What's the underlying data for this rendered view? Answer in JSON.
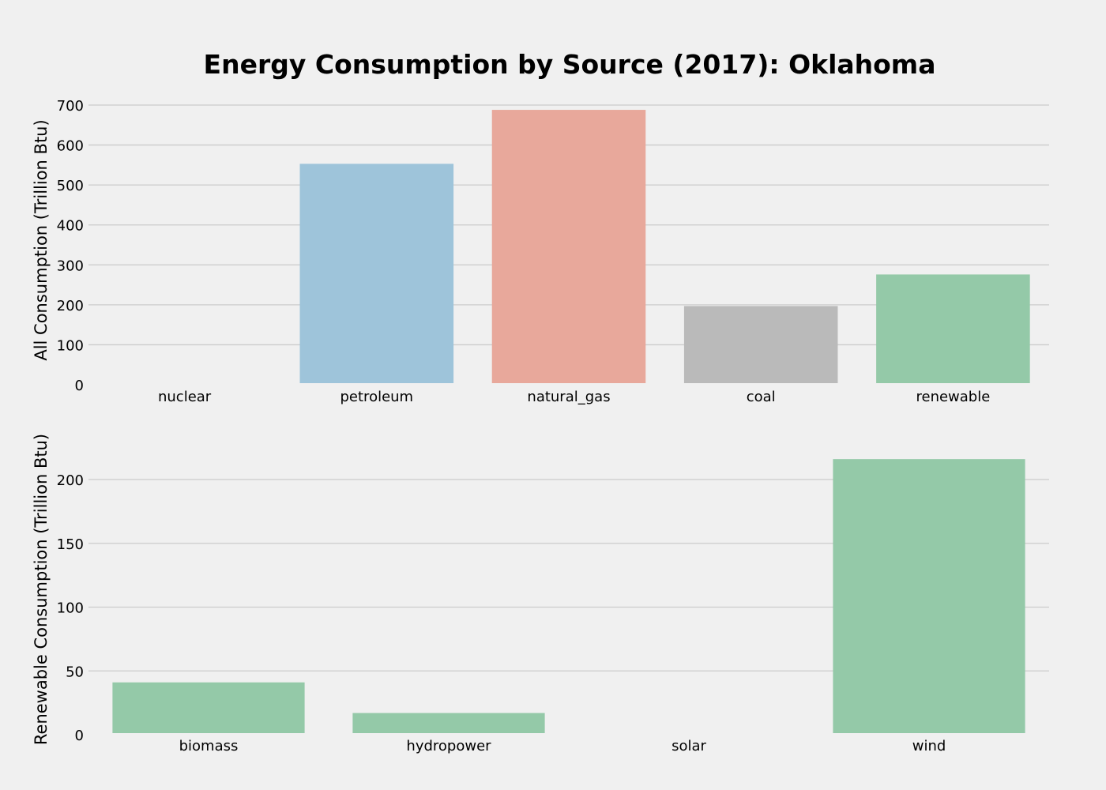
{
  "chart_data": [
    {
      "type": "bar",
      "title": "Energy Consumption by Source (2017): Oklahoma",
      "ylabel": "All Consumption (Trillion Btu)",
      "categories": [
        "nuclear",
        "petroleum",
        "natural_gas",
        "coal",
        "renewable"
      ],
      "values": [
        0,
        553,
        688,
        197,
        276
      ],
      "colors": [
        "#30a2da",
        "#30a2da",
        "#e5ae38",
        "#8b8b8b",
        "#6d904f"
      ],
      "bar_colors": [
        "#9ec4da",
        "#9ec4da",
        "#e8a89b",
        "#bababa",
        "#94c9a8"
      ],
      "yticks": [
        0,
        100,
        200,
        300,
        400,
        500,
        600,
        700
      ],
      "ylim": [
        0,
        700
      ],
      "grid": true
    },
    {
      "type": "bar",
      "title": "",
      "ylabel": "Renewable Consumption (Trillion Btu)",
      "categories": [
        "biomass",
        "hydropower",
        "solar",
        "wind"
      ],
      "values": [
        41,
        17,
        0,
        216
      ],
      "bar_colors": [
        "#94c9a8",
        "#94c9a8",
        "#94c9a8",
        "#94c9a8"
      ],
      "yticks": [
        0,
        50,
        100,
        150,
        200
      ],
      "ylim": [
        0,
        200
      ],
      "grid": true
    }
  ]
}
